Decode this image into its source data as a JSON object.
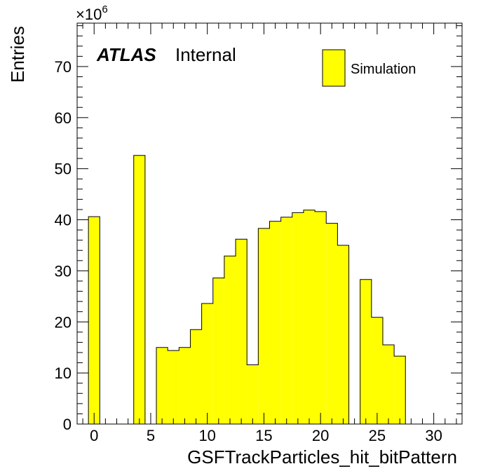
{
  "chart_data": {
    "type": "bar",
    "title": "",
    "xlabel": "GSFTrackParticles_hit_bitPattern",
    "ylabel": "Entries",
    "y_multiplier": "×10",
    "y_multiplier_exp": "6",
    "xlim": [
      -1.5,
      32.5
    ],
    "ylim": [
      0,
      78.5
    ],
    "x_ticks": [
      0,
      5,
      10,
      15,
      20,
      25,
      30
    ],
    "y_ticks": [
      0,
      10,
      20,
      30,
      40,
      50,
      60,
      70
    ],
    "bin_width": 1,
    "bins": [
      {
        "x": 0,
        "value": 40.6
      },
      {
        "x": 1,
        "value": 0
      },
      {
        "x": 2,
        "value": 0
      },
      {
        "x": 3,
        "value": 0
      },
      {
        "x": 4,
        "value": 52.6
      },
      {
        "x": 5,
        "value": 0
      },
      {
        "x": 6,
        "value": 15.0
      },
      {
        "x": 7,
        "value": 14.4
      },
      {
        "x": 8,
        "value": 15.0
      },
      {
        "x": 9,
        "value": 18.5
      },
      {
        "x": 10,
        "value": 23.6
      },
      {
        "x": 11,
        "value": 28.6
      },
      {
        "x": 12,
        "value": 32.9
      },
      {
        "x": 13,
        "value": 36.2
      },
      {
        "x": 14,
        "value": 11.6
      },
      {
        "x": 15,
        "value": 38.3
      },
      {
        "x": 16,
        "value": 39.7
      },
      {
        "x": 17,
        "value": 40.5
      },
      {
        "x": 18,
        "value": 41.4
      },
      {
        "x": 19,
        "value": 41.9
      },
      {
        "x": 20,
        "value": 41.6
      },
      {
        "x": 21,
        "value": 39.3
      },
      {
        "x": 22,
        "value": 35.0
      },
      {
        "x": 23,
        "value": 0
      },
      {
        "x": 24,
        "value": 28.3
      },
      {
        "x": 25,
        "value": 20.9
      },
      {
        "x": 26,
        "value": 15.5
      },
      {
        "x": 27,
        "value": 13.3
      }
    ],
    "fill_color": "#ffff00",
    "line_color": "#000000",
    "legend": {
      "label": "Simulation",
      "position": "top-right"
    },
    "annotation": {
      "atlas": "ATLAS",
      "status": "Internal",
      "position": "top-left"
    },
    "grid": false
  }
}
